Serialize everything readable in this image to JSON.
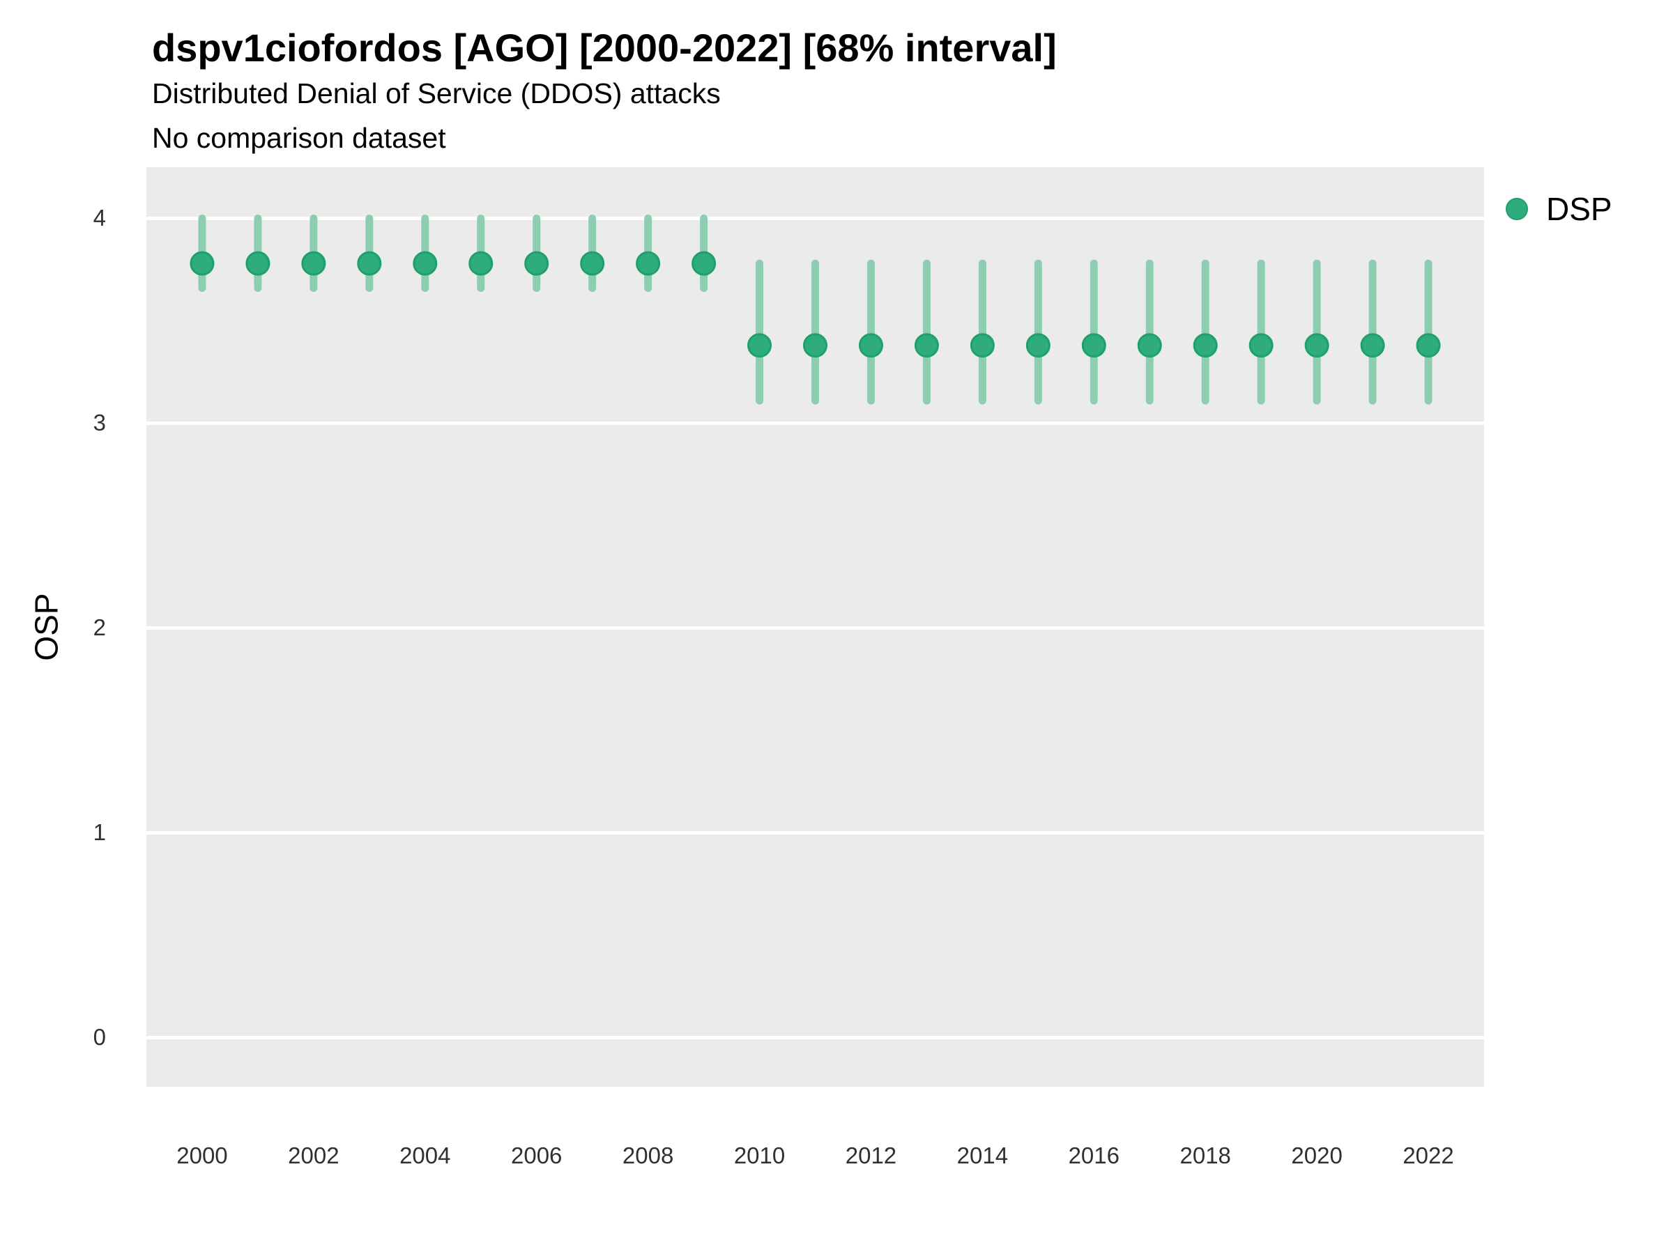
{
  "chart_data": {
    "type": "scatter",
    "title": "dspv1ciofordos [AGO] [2000-2022] [68% interval]",
    "subtitle": "Distributed Denial of Service (DDOS) attacks",
    "note": "No comparison dataset",
    "xlabel": "",
    "ylabel": "OSP",
    "interval_label": "68% interval",
    "series": [
      {
        "name": "DSP",
        "x": [
          2000,
          2001,
          2002,
          2003,
          2004,
          2005,
          2006,
          2007,
          2008,
          2009,
          2010,
          2011,
          2012,
          2013,
          2014,
          2015,
          2016,
          2017,
          2018,
          2019,
          2020,
          2021,
          2022
        ],
        "mid": [
          3.78,
          3.78,
          3.78,
          3.78,
          3.78,
          3.78,
          3.78,
          3.78,
          3.78,
          3.78,
          3.38,
          3.38,
          3.38,
          3.38,
          3.38,
          3.38,
          3.38,
          3.38,
          3.38,
          3.38,
          3.38,
          3.38,
          3.38
        ],
        "lo": [
          3.66,
          3.66,
          3.66,
          3.66,
          3.66,
          3.66,
          3.66,
          3.66,
          3.66,
          3.66,
          3.11,
          3.11,
          3.11,
          3.11,
          3.11,
          3.11,
          3.11,
          3.11,
          3.11,
          3.11,
          3.11,
          3.11,
          3.11
        ],
        "hi": [
          4.0,
          4.0,
          4.0,
          4.0,
          4.0,
          4.0,
          4.0,
          4.0,
          4.0,
          4.0,
          3.78,
          3.78,
          3.78,
          3.78,
          3.78,
          3.78,
          3.78,
          3.78,
          3.78,
          3.78,
          3.78,
          3.78,
          3.78
        ]
      }
    ],
    "x_ticks": [
      2000,
      2002,
      2004,
      2006,
      2008,
      2010,
      2012,
      2014,
      2016,
      2018,
      2020,
      2022
    ],
    "y_ticks": [
      0,
      1,
      2,
      3,
      4
    ],
    "xlim": [
      1999,
      2023
    ],
    "ylim": [
      -0.24,
      4.25
    ],
    "grid": "horizontal-only",
    "legend_position": "right",
    "colors": {
      "point": "#2FAC7E",
      "point_border": "#1DA06E",
      "interval_bar": "#8FCDB1",
      "panel_bg": "#EBEBEB",
      "gridline": "#FFFFFF",
      "text": "#000000"
    }
  }
}
